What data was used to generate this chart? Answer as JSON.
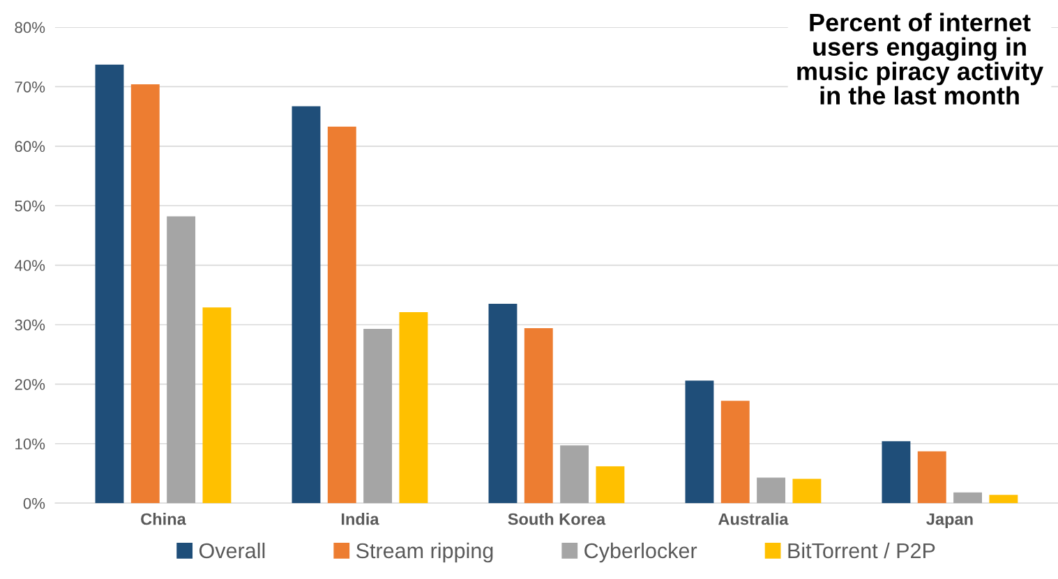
{
  "chart_data": {
    "type": "bar",
    "title": "Percent of internet\nusers engaging in\nmusic piracy activity\nin the last month",
    "categories": [
      "China",
      "India",
      "South Korea",
      "Australia",
      "Japan"
    ],
    "series": [
      {
        "name": "Overall",
        "color": "#1f4e79",
        "values": [
          73.7,
          66.7,
          33.5,
          20.6,
          10.4
        ]
      },
      {
        "name": "Stream ripping",
        "color": "#ed7d31",
        "values": [
          70.4,
          63.3,
          29.4,
          17.2,
          8.7
        ]
      },
      {
        "name": "Cyberlocker",
        "color": "#a5a5a5",
        "values": [
          48.2,
          29.3,
          9.7,
          4.3,
          1.8
        ]
      },
      {
        "name": "BitTorrent / P2P",
        "color": "#ffc000",
        "values": [
          32.9,
          32.1,
          6.2,
          4.1,
          1.4
        ]
      }
    ],
    "ylim": [
      0,
      80
    ],
    "yticks": [
      {
        "value": 0,
        "label": "0%"
      },
      {
        "value": 10,
        "label": "10%"
      },
      {
        "value": 20,
        "label": "20%"
      },
      {
        "value": 30,
        "label": "30%"
      },
      {
        "value": 40,
        "label": "40%"
      },
      {
        "value": 50,
        "label": "50%"
      },
      {
        "value": 60,
        "label": "60%"
      },
      {
        "value": 70,
        "label": "70%"
      },
      {
        "value": 80,
        "label": "80%"
      }
    ],
    "grid": "y",
    "legend": "bottom"
  }
}
